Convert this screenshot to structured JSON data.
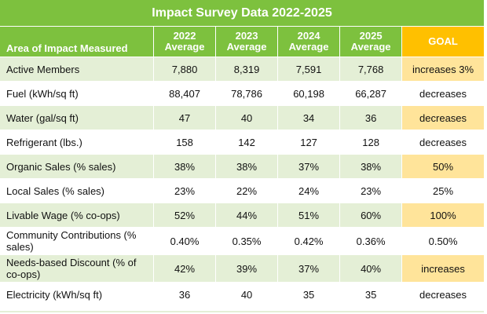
{
  "title": "Impact Survey Data 2022-2025",
  "header": {
    "area": "Area of Impact Measured",
    "years": [
      {
        "year": "2022",
        "sub": "Average"
      },
      {
        "year": "2023",
        "sub": "Average"
      },
      {
        "year": "2024",
        "sub": "Average"
      },
      {
        "year": "2025",
        "sub": "Average"
      }
    ],
    "goal": "GOAL"
  },
  "rows": [
    {
      "label": "Active Members",
      "values": [
        "7,880",
        "8,319",
        "7,591",
        "7,768"
      ],
      "goal": "increases 3%",
      "goal_highlight": true
    },
    {
      "label": "Fuel (kWh/sq ft)",
      "values": [
        "88,407",
        "78,786",
        "60,198",
        "66,287"
      ],
      "goal": "decreases",
      "goal_highlight": false
    },
    {
      "label": "Water (gal/sq ft)",
      "values": [
        "47",
        "40",
        "34",
        "36"
      ],
      "goal": "decreases",
      "goal_highlight": true
    },
    {
      "label": "Refrigerant (lbs.)",
      "values": [
        "158",
        "142",
        "127",
        "128"
      ],
      "goal": "decreases",
      "goal_highlight": false
    },
    {
      "label": "Organic Sales (% sales)",
      "values": [
        "38%",
        "38%",
        "37%",
        "38%"
      ],
      "goal": "50%",
      "goal_highlight": true
    },
    {
      "label": "Local Sales (% sales)",
      "values": [
        "23%",
        "22%",
        "24%",
        "23%"
      ],
      "goal": "25%",
      "goal_highlight": false
    },
    {
      "label": "Livable Wage (% co-ops)",
      "values": [
        "52%",
        "44%",
        "51%",
        "60%"
      ],
      "goal": "100%",
      "goal_highlight": true
    },
    {
      "label": "Community Contributions (% sales)",
      "values": [
        "0.40%",
        "0.35%",
        "0.42%",
        "0.36%"
      ],
      "goal": "0.50%",
      "goal_highlight": false
    },
    {
      "label": "Needs-based Discount (% of co-ops)",
      "values": [
        "42%",
        "39%",
        "37%",
        "40%"
      ],
      "goal": "increases",
      "goal_highlight": true
    },
    {
      "label": "Electricity (kWh/sq ft)",
      "values": [
        "36",
        "40",
        "35",
        "35"
      ],
      "goal": "decreases",
      "goal_highlight": false
    }
  ],
  "colors": {
    "header_green": "#7dc13e",
    "goal_orange": "#ffc000",
    "row_green": "#e4efd6",
    "goal_highlight": "#ffe49a"
  }
}
